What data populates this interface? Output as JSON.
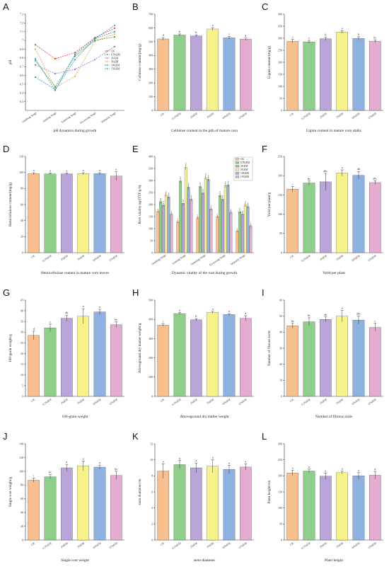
{
  "figure": {
    "colors": {
      "CK": "#f9c08f",
      "0.5%EM": "#8fce8a",
      "2%EM": "#b9a5d9",
      "5%EM": "#f7f18c",
      "10%EM": "#8fb1e0",
      "15%EM": "#e5acd2"
    }
  },
  "chart_data": [
    {
      "letter": "A",
      "type": "line",
      "caption": "pH dynamics during growth",
      "ylabel": "pH",
      "xlabel": "",
      "categories": [
        "Seedling Stage",
        "Jointing Stage",
        "Tasseling Stage",
        "Flowering Stage",
        "Maturity Stage"
      ],
      "ylim": [
        6.2,
        7.3
      ],
      "yticks": [
        6.3,
        6.4,
        6.5,
        6.6,
        6.7,
        6.8,
        6.9,
        7.0,
        7.1,
        7.2,
        7.3
      ],
      "legend": {
        "position": "right",
        "entries": [
          "CK",
          "0.5%EM",
          "2%EM",
          "5%EM",
          "10%EM",
          "15%EM"
        ]
      },
      "series": [
        {
          "name": "CK",
          "color": "#e8452f",
          "values": [
            6.95,
            6.79,
            6.86,
            7.03,
            7.14
          ]
        },
        {
          "name": "0.5%EM",
          "color": "#3a8fd4",
          "values": [
            6.58,
            6.44,
            6.78,
            7.02,
            7.17
          ]
        },
        {
          "name": "2%EM",
          "color": "#9c6fc4",
          "values": [
            6.72,
            6.62,
            6.67,
            6.78,
            6.93
          ]
        },
        {
          "name": "5%EM",
          "color": "#e8a33a",
          "values": [
            6.9,
            6.46,
            6.59,
            6.99,
            7.07
          ]
        },
        {
          "name": "10%EM",
          "color": "#2c9cc9",
          "values": [
            6.79,
            6.43,
            6.84,
            7.02,
            7.1
          ]
        },
        {
          "name": "15%EM",
          "color": "#3fa64a",
          "values": [
            6.77,
            6.47,
            6.82,
            7.0,
            7.04
          ]
        }
      ]
    },
    {
      "letter": "B",
      "type": "bar",
      "caption": "Cellulose content in the pith of mature corn",
      "ylabel": "Cellulose content/(mg/g)",
      "xlabel": "",
      "categories": [
        "CK",
        "0.5%EM",
        "2%EM",
        "5%EM",
        "10%EM",
        "15%EM"
      ],
      "values": [
        520,
        548,
        542,
        592,
        528,
        518
      ],
      "errors": [
        10,
        8,
        8,
        10,
        9,
        8
      ],
      "letters": [
        "d",
        "b",
        "b",
        "a",
        "c",
        "d"
      ],
      "ylim": [
        0,
        700
      ],
      "yticks": [
        0,
        100,
        200,
        300,
        400,
        500,
        600,
        700
      ]
    },
    {
      "letter": "C",
      "type": "bar",
      "caption": "Lignin content in mature corn stalks",
      "ylabel": "Lignin content/(mg/g)",
      "xlabel": "",
      "categories": [
        "CK",
        "0.5%EM",
        "2%EM",
        "5%EM",
        "10%EM",
        "15%EM"
      ],
      "values": [
        287,
        285,
        298,
        326,
        299,
        287
      ],
      "errors": [
        8,
        6,
        6,
        5,
        7,
        6
      ],
      "letters": [
        "c",
        "c",
        "b",
        "a",
        "b",
        "bc"
      ],
      "ylim": [
        0,
        400
      ],
      "yticks": [
        0,
        50,
        100,
        150,
        200,
        250,
        300,
        350,
        400
      ]
    },
    {
      "letter": "D",
      "type": "bar",
      "caption": "Hemicellulose content in mature corn leaves",
      "ylabel": "Hemicellulose content/(mg/g)",
      "xlabel": "",
      "categories": [
        "CK",
        "0.5%EM",
        "2%EM",
        "5%EM",
        "10%EM",
        "15%EM"
      ],
      "values": [
        98.5,
        98.2,
        98.3,
        98.6,
        98.5,
        95.5
      ],
      "errors": [
        1.2,
        1.1,
        1.0,
        1.1,
        1.2,
        5.5
      ],
      "letters": [
        "a",
        "a",
        "a",
        "a",
        "a",
        "a"
      ],
      "ylim": [
        0,
        120
      ],
      "yticks": [
        0,
        20,
        40,
        60,
        80,
        100,
        120
      ]
    },
    {
      "letter": "E",
      "type": "bar",
      "caption": "Dynamic vitality of the root during growth",
      "ylabel": "Root vitality ug/(TTF/g·h)",
      "xlabel": "",
      "categories": [
        "Seedling Stage",
        "Jointing Stage",
        "Tasseling Stage",
        "Flowering Stage",
        "Maturity Stage"
      ],
      "ylim": [
        0,
        400
      ],
      "yticks": [
        0,
        50,
        100,
        150,
        200,
        250,
        300,
        350,
        400
      ],
      "legend": {
        "position": "top-right",
        "entries": [
          "CK",
          "0.5%EM",
          "2%EM",
          "5%EM",
          "10%EM",
          "15%EM"
        ]
      },
      "series": [
        {
          "name": "CK",
          "values": [
            172,
            128,
            145,
            150,
            90
          ],
          "errors": [
            6,
            6,
            6,
            6,
            5
          ],
          "letters": [
            "c",
            "c",
            "c",
            "c",
            "c"
          ]
        },
        {
          "name": "0.5%EM",
          "values": [
            212,
            298,
            275,
            238,
            170
          ],
          "errors": [
            7,
            9,
            8,
            8,
            7
          ],
          "letters": [
            "b",
            "b",
            "b",
            "b",
            "b"
          ]
        },
        {
          "name": "2%EM",
          "values": [
            198,
            205,
            248,
            222,
            160
          ],
          "errors": [
            7,
            8,
            8,
            8,
            6
          ],
          "letters": [
            "b",
            "b",
            "b",
            "b",
            "b"
          ]
        },
        {
          "name": "5%EM",
          "values": [
            240,
            355,
            312,
            278,
            198
          ],
          "errors": [
            8,
            10,
            9,
            9,
            7
          ],
          "letters": [
            "a",
            "a",
            "a",
            "a",
            "a"
          ]
        },
        {
          "name": "10%EM",
          "values": [
            232,
            272,
            305,
            282,
            192
          ],
          "errors": [
            8,
            9,
            9,
            9,
            7
          ],
          "letters": [
            "a",
            "b",
            "a",
            "a",
            "a"
          ]
        },
        {
          "name": "15%EM",
          "values": [
            160,
            222,
            182,
            168,
            112
          ],
          "errors": [
            6,
            8,
            7,
            7,
            6
          ],
          "letters": [
            "c",
            "b",
            "c",
            "c",
            "c"
          ]
        }
      ]
    },
    {
      "letter": "F",
      "type": "bar",
      "caption": "Yeild per plant",
      "ylabel": "Yeild per plant/g",
      "xlabel": "",
      "categories": [
        "CK",
        "0.5%EM",
        "2%EM",
        "5%EM",
        "10%EM",
        "15%EM"
      ],
      "values": [
        165,
        181,
        184,
        207,
        201,
        182
      ],
      "errors": [
        7,
        5,
        22,
        8,
        10,
        5
      ],
      "letters": [
        "c",
        "bc",
        "abc",
        "a",
        "ab",
        "abc"
      ],
      "ylim": [
        0,
        250
      ],
      "yticks": [
        0,
        50,
        100,
        150,
        200,
        250
      ]
    },
    {
      "letter": "G",
      "type": "bar",
      "caption": "100-grain weight",
      "ylabel": "100-grain weight/g",
      "xlabel": "",
      "categories": [
        "CK",
        "0.5%EM",
        "2%EM",
        "5%EM",
        "10%EM",
        "15%EM"
      ],
      "values": [
        28.5,
        32.0,
        36.5,
        37.5,
        39.5,
        33.5
      ],
      "errors": [
        2.0,
        1.8,
        1.5,
        3.5,
        1.2,
        1.3
      ],
      "letters": [
        "d",
        "c",
        "ab",
        "a",
        "a",
        "bc"
      ],
      "ylim": [
        0,
        45
      ],
      "yticks": [
        0,
        5,
        10,
        15,
        20,
        25,
        30,
        35,
        40,
        45
      ]
    },
    {
      "letter": "H",
      "type": "bar",
      "caption": "Aboveground dry matter weight",
      "ylabel": "Aboveground dry matter weight/g",
      "xlabel": "",
      "categories": [
        "CK",
        "0.5%EM",
        "2%EM",
        "5%EM",
        "10%EM",
        "15%EM"
      ],
      "values": [
        370,
        430,
        398,
        437,
        425,
        405
      ],
      "errors": [
        6,
        5,
        6,
        5,
        5,
        14
      ],
      "letters": [
        "c",
        "a",
        "b",
        "a",
        "a",
        "a"
      ],
      "ylim": [
        0,
        500
      ],
      "yticks": [
        0,
        100,
        200,
        300,
        400,
        500
      ]
    },
    {
      "letter": "I",
      "type": "bar",
      "caption": "Number of fibrous roots",
      "ylabel": "Number of fibrous roots",
      "xlabel": "",
      "categories": [
        "CK",
        "0.5%EM",
        "2%EM",
        "5%EM",
        "10%EM",
        "15%EM"
      ],
      "values": [
        44,
        46.5,
        48,
        50,
        47.5,
        43
      ],
      "errors": [
        1.5,
        2.5,
        1.5,
        3.5,
        2.5,
        2.5
      ],
      "letters": [
        "bc",
        "bc",
        "ab",
        "a",
        "abc",
        "c"
      ],
      "ylim": [
        0,
        60
      ],
      "yticks": [
        0,
        10,
        20,
        30,
        40,
        50,
        60
      ]
    },
    {
      "letter": "J",
      "type": "bar",
      "caption": "Single root weight",
      "ylabel": "Single root weight/g",
      "xlabel": "",
      "categories": [
        "CK",
        "0.5%EM",
        "2%EM",
        "5%EM",
        "10%EM",
        "15%EM"
      ],
      "values": [
        87,
        92,
        105,
        108,
        106,
        94
      ],
      "errors": [
        3,
        3,
        5,
        7,
        3,
        6
      ],
      "letters": [
        "c",
        "bc",
        "a",
        "a",
        "a",
        "bc"
      ],
      "ylim": [
        0,
        140
      ],
      "yticks": [
        0,
        20,
        40,
        60,
        80,
        100,
        120,
        140
      ]
    },
    {
      "letter": "K",
      "type": "bar",
      "caption": "stem diameter",
      "ylabel": "stem diameter/cm",
      "xlabel": "",
      "categories": [
        "CK",
        "0.5%EM",
        "2%EM",
        "5%EM",
        "10%EM",
        "15%EM"
      ],
      "values": [
        8.6,
        9.4,
        9.0,
        9.2,
        8.8,
        9.1
      ],
      "errors": [
        0.9,
        0.5,
        0.6,
        0.8,
        0.5,
        0.4
      ],
      "letters": [
        "a",
        "a",
        "a",
        "a",
        "a",
        "a"
      ],
      "ylim": [
        0,
        12
      ],
      "yticks": [
        0,
        2,
        4,
        6,
        8,
        10,
        12
      ]
    },
    {
      "letter": "L",
      "type": "bar",
      "caption": "Plant height",
      "ylabel": "Plant height/cm",
      "xlabel": "",
      "categories": [
        "CK",
        "0.5%EM",
        "2%EM",
        "5%EM",
        "10%EM",
        "15%EM"
      ],
      "values": [
        209,
        215,
        199,
        210,
        200,
        202
      ],
      "errors": [
        8,
        6,
        10,
        5,
        10,
        12
      ],
      "letters": [
        "a",
        "a",
        "a",
        "a",
        "a",
        "a"
      ],
      "ylim": [
        0,
        300
      ],
      "yticks": [
        0,
        50,
        100,
        150,
        200,
        250,
        300
      ]
    }
  ]
}
